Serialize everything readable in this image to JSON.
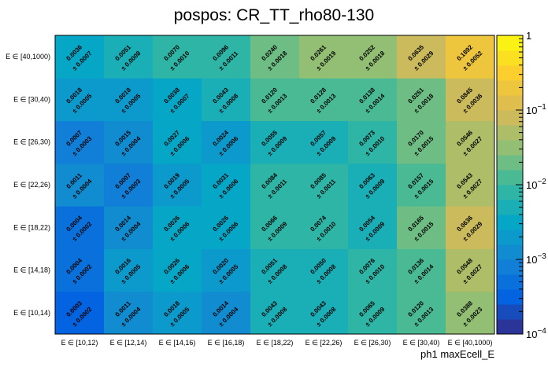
{
  "chart_data": {
    "type": "heatmap",
    "title": "pospos: CR_TT_rho80-130",
    "xlabel": "ph1 maxEcell_E",
    "ylabel": "",
    "x_categories": [
      "E ∈ [10,12)",
      "E ∈ [12,14)",
      "E ∈ [14,16)",
      "E ∈ [16,18)",
      "E ∈ [18,22)",
      "E ∈ [22,26)",
      "E ∈ [26,30)",
      "E ∈ [30,40)",
      "E ∈ [40,1000)"
    ],
    "y_categories": [
      "E ∈ [10,14)",
      "E ∈ [14,18)",
      "E ∈ [18,22)",
      "E ∈ [22,26)",
      "E ∈ [26,30)",
      "E ∈ [30,40)",
      "E ∈ [40,1000)"
    ],
    "values": [
      [
        "0.0003",
        "0.0011",
        "0.0018",
        "0.0014",
        "0.0043",
        "0.0043",
        "0.0065",
        "0.0120",
        "0.0388"
      ],
      [
        "0.0004",
        "0.0016",
        "0.0026",
        "0.0020",
        "0.0051",
        "0.0050",
        "0.0076",
        "0.0136",
        "0.0548"
      ],
      [
        "0.0004",
        "0.0014",
        "0.0026",
        "0.0026",
        "0.0066",
        "0.0074",
        "0.0054",
        "0.0165",
        "0.0636"
      ],
      [
        "0.0011",
        "0.0007",
        "0.0019",
        "0.0031",
        "0.0084",
        "0.0085",
        "0.0063",
        "0.0157",
        "0.0543"
      ],
      [
        "0.0007",
        "0.0015",
        "0.0027",
        "0.0024",
        "0.0055",
        "0.0057",
        "0.0073",
        "0.0170",
        "0.0546"
      ],
      [
        "0.0018",
        "0.0018",
        "0.0038",
        "0.0043",
        "0.0120",
        "0.0128",
        "0.0138",
        "0.0251",
        "0.0845"
      ],
      [
        "0.0036",
        "0.0051",
        "0.0070",
        "0.0096",
        "0.0240",
        "0.0261",
        "0.0252",
        "0.0635",
        "0.1892"
      ]
    ],
    "errors": [
      [
        "± 0.0002",
        "± 0.0004",
        "± 0.0005",
        "± 0.0004",
        "± 0.0008",
        "± 0.0008",
        "± 0.0009",
        "± 0.0013",
        "± 0.0023"
      ],
      [
        "± 0.0002",
        "± 0.0005",
        "± 0.0006",
        "± 0.0005",
        "± 0.0008",
        "± 0.0008",
        "± 0.0010",
        "± 0.0014",
        "± 0.0027"
      ],
      [
        "± 0.0002",
        "± 0.0004",
        "± 0.0006",
        "± 0.0006",
        "± 0.0009",
        "± 0.0010",
        "± 0.0009",
        "± 0.0015",
        "± 0.0029"
      ],
      [
        "± 0.0004",
        "± 0.0003",
        "± 0.0005",
        "± 0.0006",
        "± 0.0011",
        "± 0.0011",
        "± 0.0009",
        "± 0.0015",
        "± 0.0027"
      ],
      [
        "± 0.0003",
        "± 0.0004",
        "± 0.0006",
        "± 0.0006",
        "± 0.0009",
        "± 0.0009",
        "± 0.0010",
        "± 0.0015",
        "± 0.0027"
      ],
      [
        "± 0.0005",
        "± 0.0005",
        "± 0.0007",
        "± 0.0008",
        "± 0.0013",
        "± 0.0013",
        "± 0.0014",
        "± 0.0018",
        "± 0.0036"
      ],
      [
        "± 0.0007",
        "± 0.0008",
        "± 0.0010",
        "± 0.0011",
        "± 0.0018",
        "± 0.0019",
        "± 0.0018",
        "± 0.0029",
        "± 0.0052"
      ]
    ],
    "zscale": "log",
    "zlim": [
      0.0001,
      1
    ],
    "colorbar": {
      "tick_values": [
        1,
        0.1,
        0.01,
        0.001,
        0.0001
      ],
      "tick_labels": [
        {
          "base": "1",
          "exp": ""
        },
        {
          "base": "10",
          "exp": "−1"
        },
        {
          "base": "10",
          "exp": "−2"
        },
        {
          "base": "10",
          "exp": "−3"
        },
        {
          "base": "10",
          "exp": "−4"
        }
      ]
    },
    "colormap": [
      "#352a87",
      "#0363e1",
      "#1485d4",
      "#06a7c6",
      "#38b99e",
      "#92bf73",
      "#d9ba56",
      "#fcce2e",
      "#f9fb0e"
    ]
  }
}
